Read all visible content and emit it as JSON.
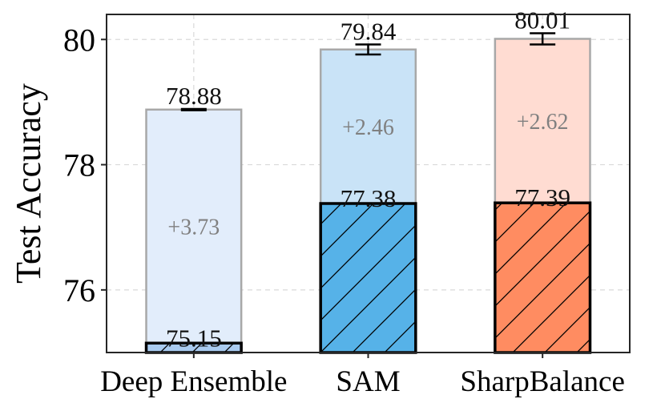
{
  "chart_data": {
    "type": "bar",
    "subtype": "stacked-bar-with-error-bars",
    "categories": [
      "Deep Ensemble",
      "SAM",
      "SharpBalance"
    ],
    "base_values": [
      75.15,
      77.38,
      77.39
    ],
    "ensemble_values": [
      78.88,
      79.84,
      80.01
    ],
    "gain_labels": [
      "+3.73",
      "+2.46",
      "+2.62"
    ],
    "error": [
      0.01,
      0.08,
      0.09
    ],
    "base_labels": [
      "75.15",
      "77.38",
      "77.39"
    ],
    "ensemble_labels": [
      "78.88",
      "79.84",
      "80.01"
    ],
    "ylabel": "Test Accuracy",
    "xlabel": "",
    "ylim": [
      75.0,
      80.4
    ],
    "yticks": [
      76,
      78,
      80
    ],
    "ytick_labels": [
      "76",
      "78",
      "80"
    ],
    "grid": true,
    "base_hatched": true,
    "colors": {
      "base": [
        "#a9cbf0",
        "#56b2e8",
        "#ff8c61"
      ],
      "top": [
        "#e2edfb",
        "#c9e3f7",
        "#ffdcd2"
      ],
      "top_edge": "#a8a8a8",
      "base_edge": "#000000",
      "gain_text": "#808080",
      "grid": "#d9d9d9"
    }
  }
}
